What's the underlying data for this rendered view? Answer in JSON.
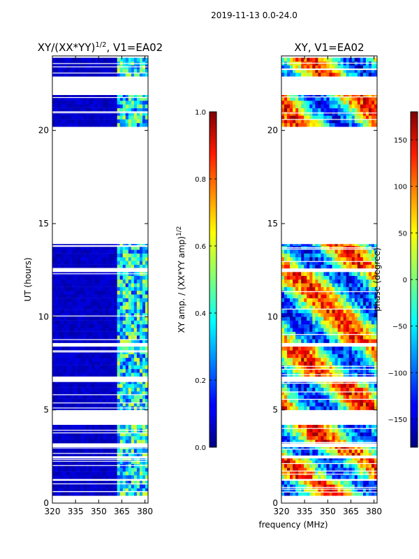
{
  "figure": {
    "suptitle": "2019-11-13 0.0-24.0",
    "xlabel": "frequency (MHz)"
  },
  "chart_data": [
    {
      "type": "heatmap",
      "title_main": "XY/(XX*YY)",
      "title_sup": "1/2",
      "title_tail": ", V1=EA02",
      "xlabel": "frequency (MHz)",
      "ylabel": "UT (hours)",
      "xlim": [
        320,
        382
      ],
      "ylim": [
        0,
        24
      ],
      "xticks": [
        "320",
        "335",
        "350",
        "365",
        "380"
      ],
      "xtick_values": [
        320,
        335,
        350,
        365,
        380
      ],
      "yticks": [
        "0",
        "5",
        "10",
        "15",
        "20"
      ],
      "ytick_values": [
        0,
        5,
        10,
        15,
        20
      ],
      "colormap": "jet",
      "colorbar": {
        "label": "XY amp. / (XX*YY amp)",
        "label_sup": "1/2",
        "range": [
          0.0,
          1.0
        ],
        "ticks": [
          "0.0",
          "0.2",
          "0.4",
          "0.6",
          "0.8",
          "1.0"
        ],
        "tick_values": [
          0.0,
          0.2,
          0.4,
          0.6,
          0.8,
          1.0
        ]
      },
      "data_blocks_ut": [
        [
          0.4,
          1.2
        ],
        [
          1.3,
          2.4
        ],
        [
          2.5,
          3.0
        ],
        [
          3.2,
          4.2
        ],
        [
          5.0,
          6.5
        ],
        [
          6.8,
          8.4
        ],
        [
          8.6,
          12.4
        ],
        [
          12.6,
          13.9
        ],
        [
          20.2,
          21.9
        ],
        [
          22.9,
          23.9
        ]
      ],
      "value_summary": {
        "low_band_MHz": [
          320,
          362
        ],
        "low_band_value": 0.05,
        "high_band_MHz": [
          362,
          380
        ],
        "high_band_value": 0.35
      }
    },
    {
      "type": "heatmap",
      "title": "XY, V1=EA02",
      "xlim": [
        320,
        382
      ],
      "ylim": [
        0,
        24
      ],
      "xticks": [
        "320",
        "335",
        "350",
        "365",
        "380"
      ],
      "xtick_values": [
        320,
        335,
        350,
        365,
        380
      ],
      "yticks": [
        "0",
        "5",
        "10",
        "15",
        "20"
      ],
      "ytick_values": [
        0,
        5,
        10,
        15,
        20
      ],
      "colormap": "jet",
      "colorbar": {
        "label": "phase (degree)",
        "range": [
          -180,
          180
        ],
        "ticks": [
          "−150",
          "−100",
          "−50",
          "0",
          "50",
          "100",
          "150"
        ],
        "tick_values": [
          -150,
          -100,
          -50,
          0,
          50,
          100,
          150
        ]
      },
      "data_blocks_ut": [
        [
          0.4,
          1.2
        ],
        [
          1.3,
          2.4
        ],
        [
          2.5,
          3.0
        ],
        [
          3.2,
          4.2
        ],
        [
          5.0,
          6.5
        ],
        [
          6.8,
          8.4
        ],
        [
          8.6,
          12.4
        ],
        [
          12.6,
          13.9
        ],
        [
          20.2,
          21.9
        ],
        [
          22.9,
          23.9
        ]
      ],
      "value_summary": {
        "range_deg": [
          -180,
          180
        ]
      }
    }
  ]
}
